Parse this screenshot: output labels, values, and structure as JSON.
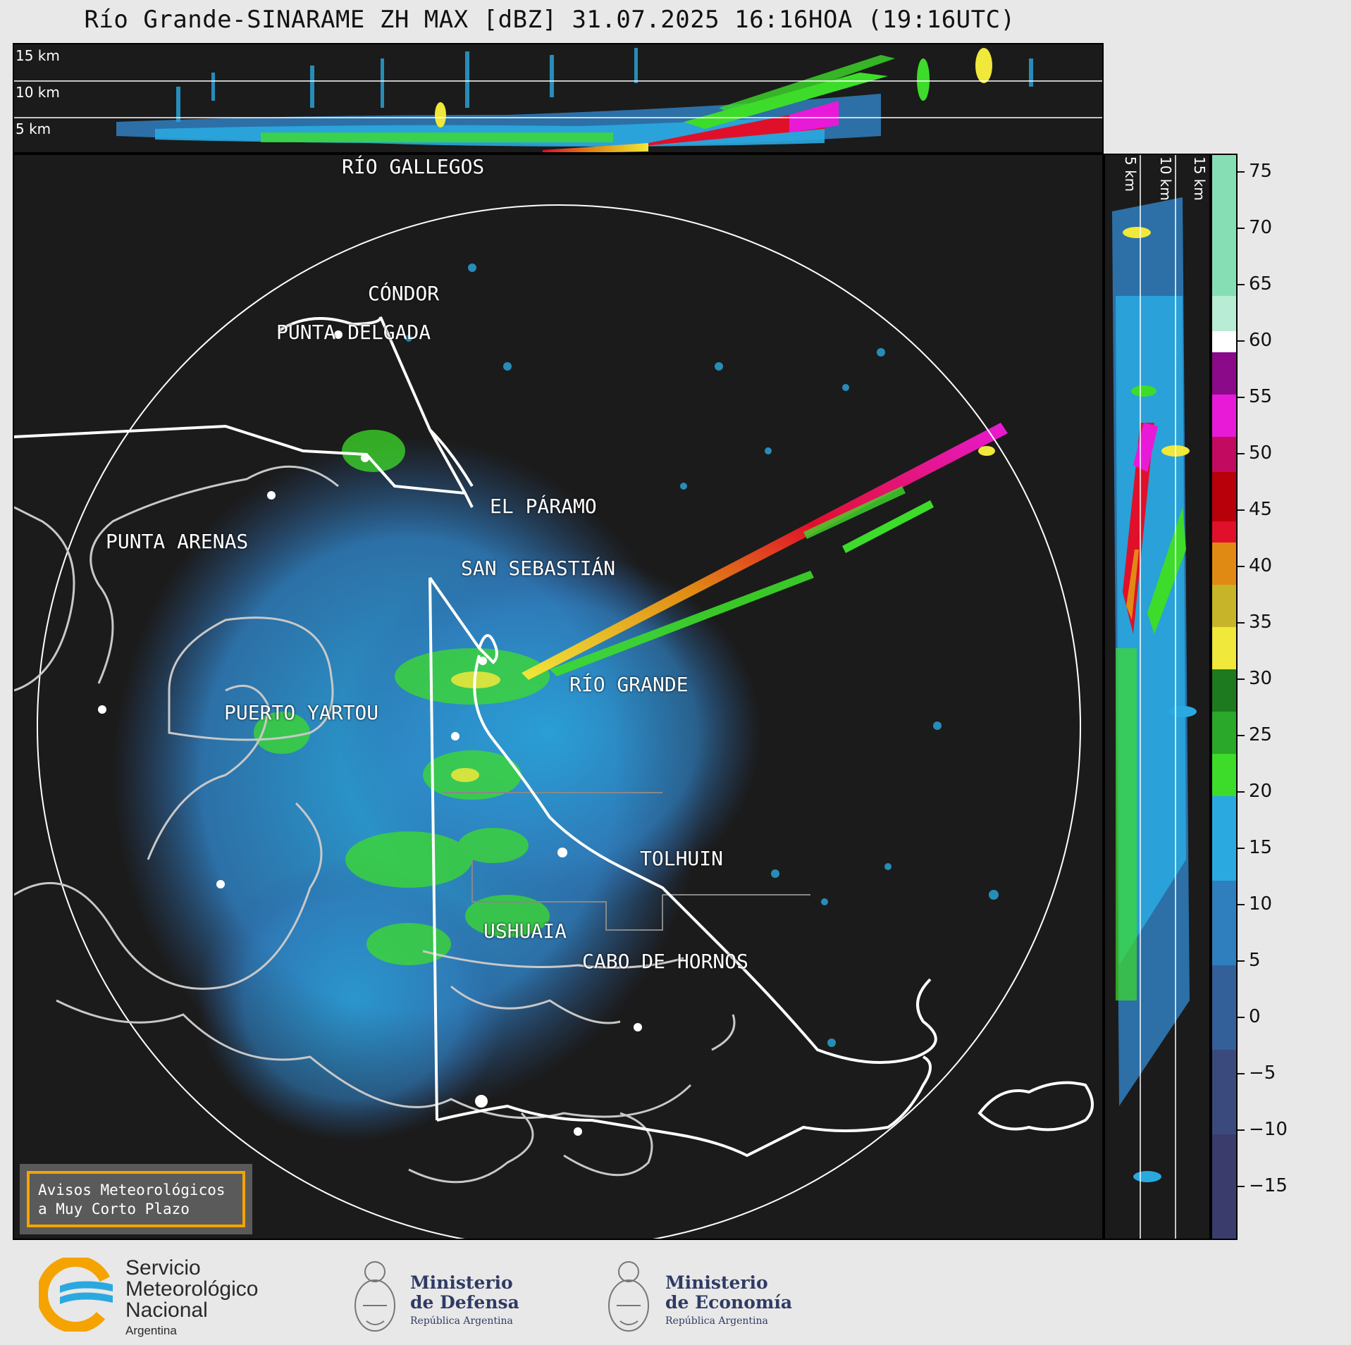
{
  "title": "Río Grande-SINARAME ZH MAX [dBZ] 31.07.2025 16:16HOA (19:16UTC)",
  "top_panel": {
    "levels": [
      "15 km",
      "10 km",
      "5 km"
    ]
  },
  "side_panel": {
    "levels": [
      "5 km",
      "10 km",
      "15 km"
    ]
  },
  "cities": [
    {
      "id": "rio-gallegos",
      "label": "RÍO GALLEGOS"
    },
    {
      "id": "condor",
      "label": "CÓNDOR"
    },
    {
      "id": "punta-delgada",
      "label": "PUNTA DELGADA"
    },
    {
      "id": "el-paramo",
      "label": "EL PÁRAMO"
    },
    {
      "id": "punta-arenas",
      "label": "PUNTA ARENAS"
    },
    {
      "id": "san-sebastian",
      "label": "SAN SEBASTIÁN"
    },
    {
      "id": "rio-grande",
      "label": "RÍO GRANDE"
    },
    {
      "id": "puerto-yartou",
      "label": "PUERTO YARTOU"
    },
    {
      "id": "tolhuin",
      "label": "TOLHUIN"
    },
    {
      "id": "ushuaia",
      "label": "USHUAIA"
    },
    {
      "id": "cabo-de-hornos",
      "label": "CABO DE HORNOS"
    }
  ],
  "colorbar": {
    "unit": "dBZ",
    "ticks": [
      "75",
      "70",
      "65",
      "60",
      "55",
      "50",
      "45",
      "40",
      "35",
      "30",
      "25",
      "20",
      "15",
      "10",
      "5",
      "0",
      "−5",
      "−10",
      "−15"
    ],
    "range": [
      -20,
      77
    ],
    "colors": {
      "light_blue": "#2aa9e0",
      "green": "#3ddc2a",
      "dark_green": "#1e7a1e",
      "yellow": "#f0e83a",
      "orange": "#e08a14",
      "red": "#e0102a",
      "magenta": "#e81ad8",
      "purple": "#8a0a8a",
      "white": "#ffffff",
      "mint": "#86dfb4",
      "navy": "#3a3d6c"
    }
  },
  "notice": {
    "line1": "Avisos Meteorológicos",
    "line2": "a Muy Corto Plazo"
  },
  "logos": {
    "smn": {
      "line1": "Servicio",
      "line2": "Meteorológico",
      "line3": "Nacional",
      "line4": "Argentina"
    },
    "defensa": {
      "line1": "Ministerio",
      "line2": "de Defensa",
      "line3": "República Argentina"
    },
    "economia": {
      "line1": "Ministerio",
      "line2": "de Economía",
      "line3": "República Argentina"
    }
  }
}
